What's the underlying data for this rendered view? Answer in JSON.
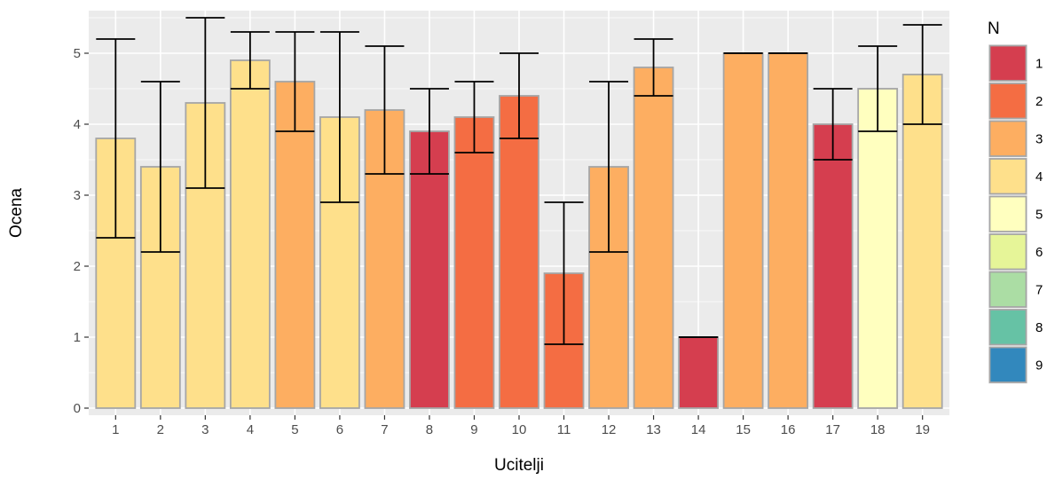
{
  "chart_data": {
    "type": "bar",
    "title": "",
    "xlabel": "Ucitelji",
    "ylabel": "Ocena",
    "categories": [
      "1",
      "2",
      "3",
      "4",
      "5",
      "6",
      "7",
      "8",
      "9",
      "10",
      "11",
      "12",
      "13",
      "14",
      "15",
      "16",
      "17",
      "18",
      "19"
    ],
    "values": [
      3.8,
      3.4,
      4.3,
      4.9,
      4.6,
      4.1,
      4.2,
      3.9,
      4.1,
      4.4,
      1.9,
      3.4,
      4.8,
      1.0,
      5.0,
      5.0,
      4.0,
      4.5,
      4.7
    ],
    "error_low": [
      2.4,
      2.2,
      3.1,
      4.5,
      3.9,
      2.9,
      3.3,
      3.3,
      3.6,
      3.8,
      0.9,
      2.2,
      4.4,
      1.0,
      5.0,
      5.0,
      3.5,
      3.9,
      4.0
    ],
    "error_high": [
      5.2,
      4.6,
      5.5,
      5.3,
      5.3,
      5.3,
      5.1,
      4.5,
      4.6,
      5.0,
      2.9,
      4.6,
      5.2,
      1.0,
      5.0,
      5.0,
      4.5,
      5.1,
      5.4
    ],
    "n": [
      4,
      4,
      4,
      4,
      3,
      4,
      3,
      1,
      2,
      2,
      2,
      3,
      3,
      1,
      3,
      3,
      1,
      5,
      4
    ],
    "ylim": [
      -0.1,
      5.6
    ],
    "yticks": [
      0,
      1,
      2,
      3,
      4,
      5
    ],
    "ytick_labels": [
      "0",
      "1",
      "2",
      "3",
      "4",
      "5"
    ],
    "grid": true,
    "legend": {
      "title": "N",
      "placement": "right",
      "entries": [
        {
          "label": "1",
          "color": "#D53E4F"
        },
        {
          "label": "2",
          "color": "#F46D43"
        },
        {
          "label": "3",
          "color": "#FDAE61"
        },
        {
          "label": "4",
          "color": "#FEE08B"
        },
        {
          "label": "5",
          "color": "#FFFFBF"
        },
        {
          "label": "6",
          "color": "#E6F598"
        },
        {
          "label": "7",
          "color": "#ABDDA4"
        },
        {
          "label": "8",
          "color": "#66C2A5"
        },
        {
          "label": "9",
          "color": "#3288BD"
        }
      ]
    },
    "colors": {
      "panel_background": "#EBEBEB",
      "grid": "#FFFFFF",
      "bar_outline": "#A6A6A6",
      "errorbar": "#000000"
    }
  }
}
